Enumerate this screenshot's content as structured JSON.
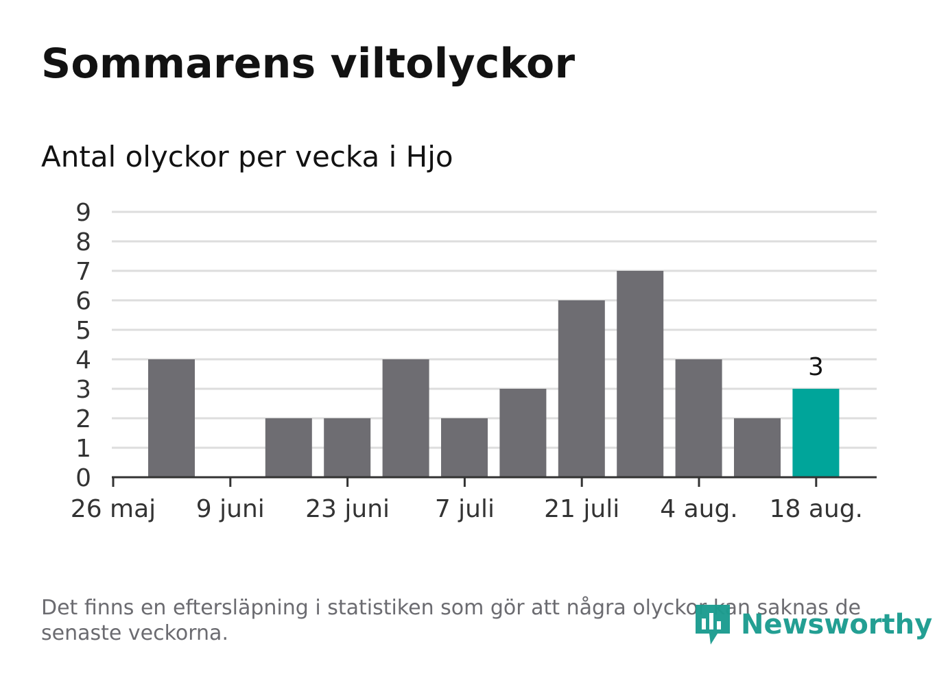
{
  "title": "Sommarens viltolyckor",
  "subtitle": "Antal olyckor per vecka i Hjo",
  "footnote": "Det finns en eftersläpning i statistiken som gör att några olyckor kan saknas de senaste veckorna.",
  "brand": {
    "name": "Newsworthy",
    "icon": "newsworthy-logo-icon",
    "color": "#1b9c8f"
  },
  "colors": {
    "bar": "#6e6d72",
    "highlight": "#00a59a",
    "grid": "#dddddd",
    "axis": "#333333",
    "text": "#333333"
  },
  "chart_data": {
    "type": "bar",
    "title": "Antal olyckor per vecka i Hjo",
    "xlabel": "",
    "ylabel": "",
    "ylim": [
      0,
      9
    ],
    "yticks": [
      0,
      1,
      2,
      3,
      4,
      5,
      6,
      7,
      8,
      9
    ],
    "grid": true,
    "xticks": [
      "26 maj",
      "9 juni",
      "23 juni",
      "7 juli",
      "21 juli",
      "4 aug.",
      "18 aug."
    ],
    "weeks": [
      "2019-05-27",
      "2019-06-03",
      "2019-06-10",
      "2019-06-17",
      "2019-06-24",
      "2019-07-01",
      "2019-07-08",
      "2019-07-15",
      "2019-07-22",
      "2019-07-29",
      "2019-08-05",
      "2019-08-12"
    ],
    "values": [
      4,
      0,
      2,
      2,
      4,
      2,
      3,
      6,
      7,
      4,
      2,
      3
    ],
    "highlight_index": 11,
    "data_labels": [
      {
        "index": 11,
        "text": "3"
      }
    ]
  }
}
